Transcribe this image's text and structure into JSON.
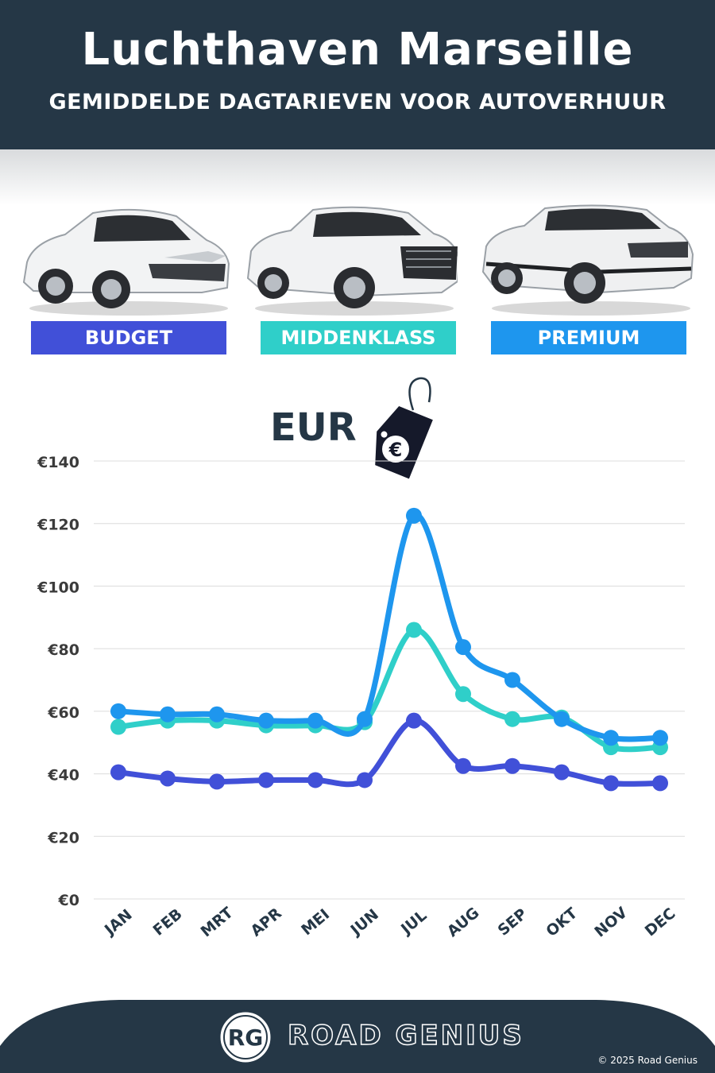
{
  "header": {
    "title": "Luchthaven Marseille",
    "subtitle": "GEMIDDELDE DAGTARIEVEN VOOR AUTOVERHUUR"
  },
  "categories": [
    {
      "label": "BUDGET",
      "color": "#4150d8"
    },
    {
      "label": "MIDDENKLASS",
      "color": "#2fcfc9"
    },
    {
      "label": "PREMIUM",
      "color": "#1e96ee"
    }
  ],
  "currency_label": "EUR",
  "price_tag_symbol": "€",
  "chart_data": {
    "type": "line",
    "categories": [
      "JAN",
      "FEB",
      "MRT",
      "APR",
      "MEI",
      "JUN",
      "JUL",
      "AUG",
      "SEP",
      "OKT",
      "NOV",
      "DEC"
    ],
    "series": [
      {
        "name": "BUDGET",
        "color": "#4150d8",
        "values": [
          40.5,
          38.5,
          37.5,
          38,
          38,
          38,
          57,
          42.5,
          42.5,
          40.5,
          37,
          37
        ]
      },
      {
        "name": "MIDDENKLASS",
        "color": "#2fcfc9",
        "values": [
          55,
          57,
          57,
          55.5,
          55.5,
          56.5,
          86,
          65.5,
          57.5,
          58,
          48.5,
          48.5
        ]
      },
      {
        "name": "PREMIUM",
        "color": "#1e96ee",
        "values": [
          60,
          59,
          59,
          57,
          57,
          57.5,
          122.5,
          80.5,
          70,
          57.5,
          51.5,
          51.5
        ]
      }
    ],
    "y_ticks": [
      "€0",
      "€20",
      "€40",
      "€60",
      "€80",
      "€100",
      "€120",
      "€140"
    ],
    "ylim": [
      0,
      140
    ],
    "grid": true
  },
  "footer": {
    "logo_text": "RG",
    "brand": "ROAD GENIUS",
    "copyright": "© 2025 Road Genius"
  }
}
